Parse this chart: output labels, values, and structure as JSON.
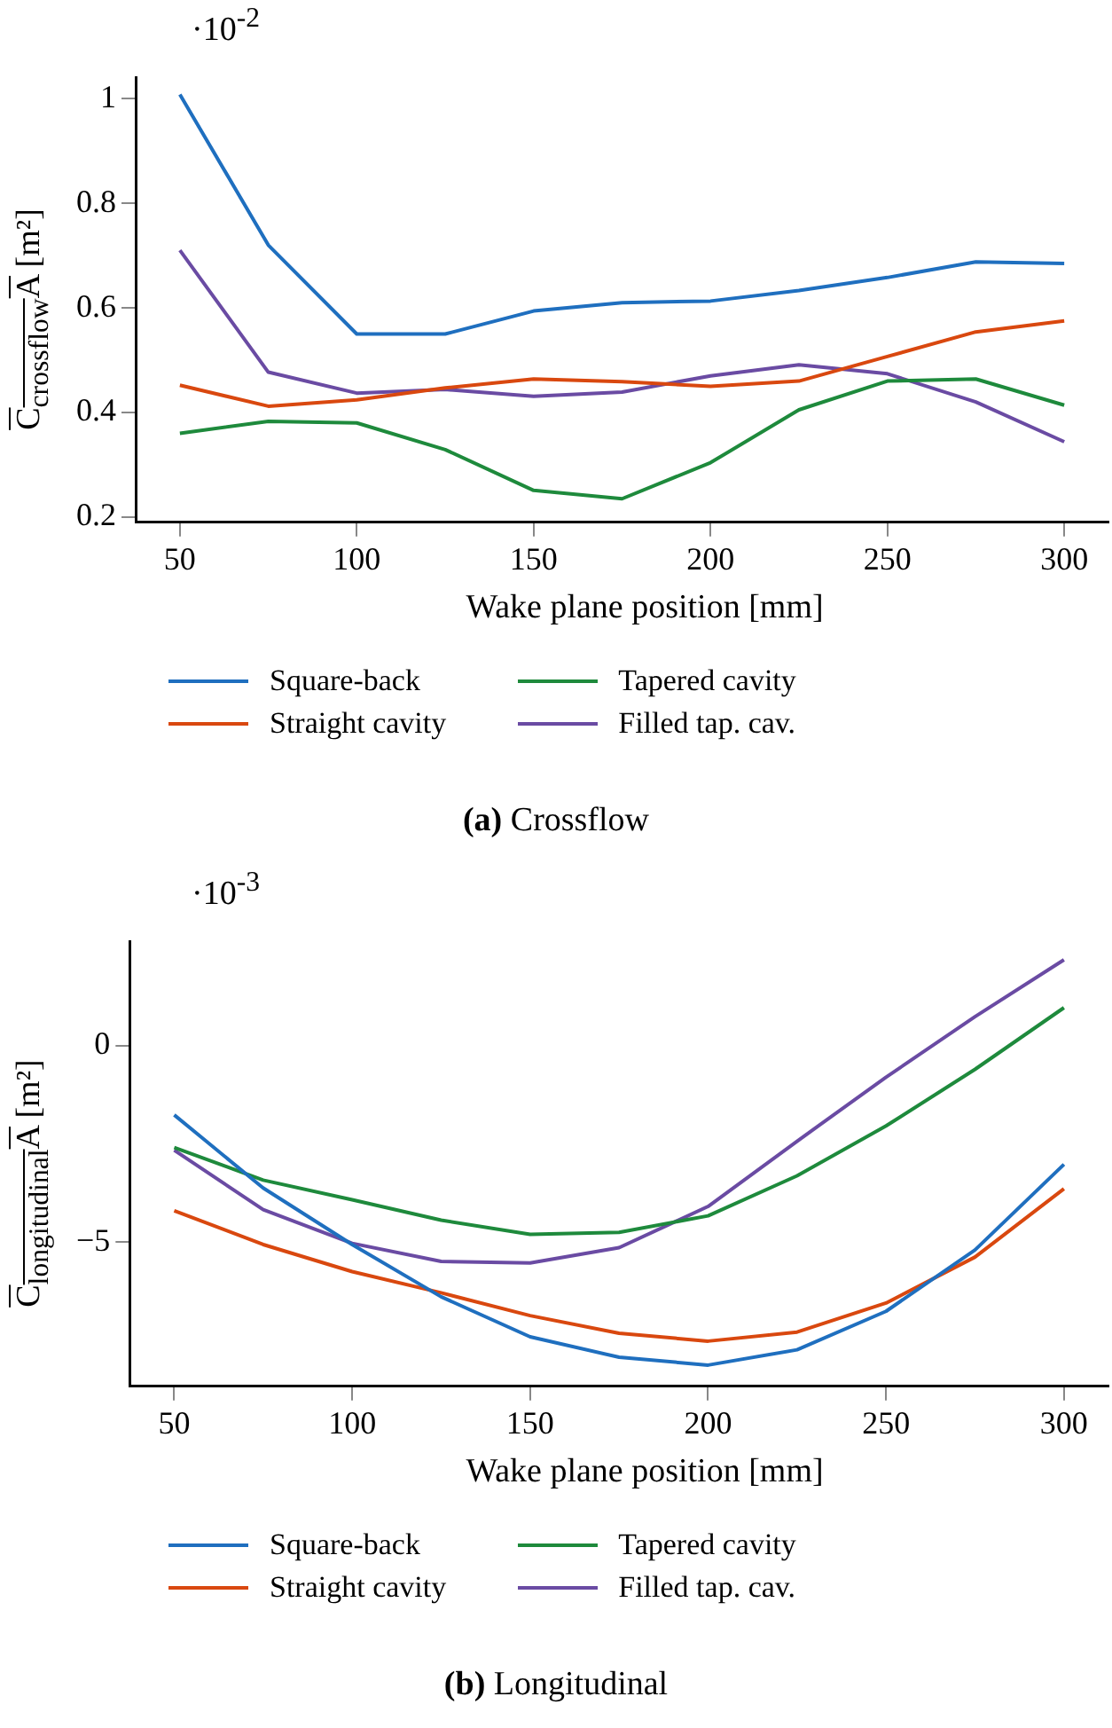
{
  "chart_data": [
    {
      "type": "line",
      "title": "(a) Crossflow",
      "xlabel": "Wake plane position [mm]",
      "ylabel": "C$_{crossflow}$A [m²]",
      "annotations": [
        "·10$^{-2}$"
      ],
      "x": [
        50,
        75,
        100,
        125,
        150,
        175,
        200,
        225,
        250,
        275,
        300
      ],
      "xlim": [
        37.5,
        312.5
      ],
      "xticks": [
        50,
        100,
        150,
        200,
        250,
        300
      ],
      "ylim": [
        0.19,
        1.04
      ],
      "yticks": [
        0.2,
        0.4,
        0.6,
        0.8,
        1
      ],
      "grid": false,
      "legend": "bottom",
      "marker": "none",
      "line_style": "solid",
      "series": [
        {
          "name": "Square-back",
          "color": "#1f6fbf",
          "values": [
            1.008,
            0.72,
            0.55,
            0.55,
            0.594,
            0.61,
            0.613,
            0.633,
            0.658,
            0.688,
            0.685
          ]
        },
        {
          "name": "Straight cavity",
          "color": "#d9480f",
          "values": [
            0.452,
            0.412,
            0.424,
            0.447,
            0.464,
            0.459,
            0.45,
            0.46,
            0.507,
            0.554,
            0.575
          ]
        },
        {
          "name": "Tapered cavity",
          "color": "#1e8a3c",
          "values": [
            0.36,
            0.383,
            0.38,
            0.329,
            0.251,
            0.235,
            0.304,
            0.405,
            0.46,
            0.464,
            0.414
          ]
        },
        {
          "name": "Filled tap. cav.",
          "color": "#6a4ba3",
          "values": [
            0.71,
            0.477,
            0.437,
            0.444,
            0.431,
            0.439,
            0.47,
            0.491,
            0.474,
            0.42,
            0.344
          ]
        }
      ]
    },
    {
      "type": "line",
      "title": "(b) Longitudinal",
      "xlabel": "Wake plane position [mm]",
      "ylabel": "C$_{longitudinal}$A [m²]",
      "annotations": [
        "·10$^{-3}$"
      ],
      "x": [
        50,
        75,
        100,
        125,
        150,
        175,
        200,
        225,
        250,
        275,
        300
      ],
      "xlim": [
        37.5,
        312.5
      ],
      "xticks": [
        50,
        100,
        150,
        200,
        250,
        300
      ],
      "ylim": [
        -8.67,
        2.65
      ],
      "yticks": [
        {
          "value": -5,
          "label": "−5"
        },
        0
      ],
      "grid": false,
      "legend": "bottom",
      "marker": "none",
      "line_style": "solid",
      "series": [
        {
          "name": "Square-back",
          "color": "#1f6fbf",
          "values": [
            -1.76,
            -3.62,
            -5.06,
            -6.39,
            -7.41,
            -7.93,
            -8.13,
            -7.74,
            -6.76,
            -5.2,
            -3.02
          ]
        },
        {
          "name": "Straight cavity",
          "color": "#d9480f",
          "values": [
            -4.2,
            -5.06,
            -5.75,
            -6.29,
            -6.87,
            -7.32,
            -7.52,
            -7.29,
            -6.55,
            -5.38,
            -3.64
          ]
        },
        {
          "name": "Tapered cavity",
          "color": "#1e8a3c",
          "values": [
            -2.59,
            -3.42,
            -3.92,
            -4.44,
            -4.8,
            -4.75,
            -4.33,
            -3.31,
            -2.04,
            -0.6,
            0.97
          ]
        },
        {
          "name": "Filled tap. cav.",
          "color": "#6a4ba3",
          "values": [
            -2.66,
            -4.17,
            -5.03,
            -5.49,
            -5.53,
            -5.14,
            -4.09,
            -2.43,
            -0.8,
            0.74,
            2.19
          ]
        }
      ]
    }
  ]
}
